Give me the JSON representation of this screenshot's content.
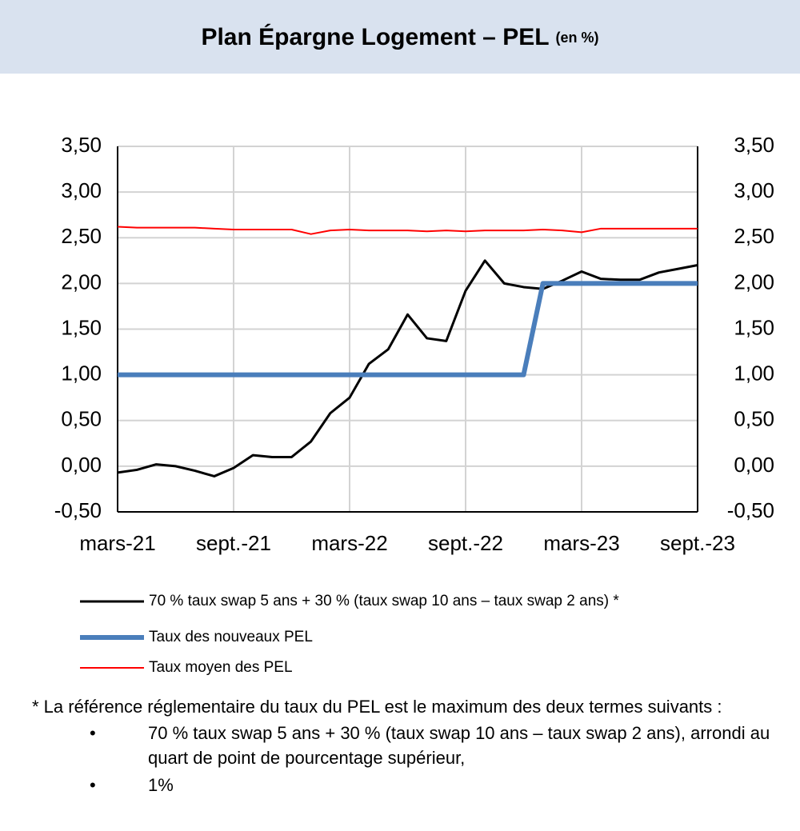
{
  "chart_data": {
    "type": "line",
    "title": "Plan Épargne Logement – PEL",
    "subtitle": "(en %)",
    "categories": [
      "mars-21",
      null,
      null,
      null,
      null,
      null,
      "sept.-21",
      null,
      null,
      null,
      null,
      null,
      "mars-22",
      null,
      null,
      null,
      null,
      null,
      "sept.-22",
      null,
      null,
      null,
      null,
      null,
      "mars-23",
      null,
      null,
      null,
      null,
      null,
      "sept.-23"
    ],
    "series": [
      {
        "name": "70 % taux swap 5 ans + 30 % (taux swap 10 ans – taux swap 2 ans) *",
        "color": "#000000",
        "width": 3,
        "values": [
          -0.07,
          -0.04,
          0.02,
          0.0,
          -0.05,
          -0.11,
          -0.02,
          0.12,
          0.1,
          0.1,
          0.27,
          0.58,
          0.75,
          1.12,
          1.28,
          1.66,
          1.4,
          1.37,
          1.92,
          2.25,
          2.0,
          1.96,
          1.94,
          2.03,
          2.13,
          2.05,
          2.04,
          2.04,
          2.12,
          2.16,
          2.2
        ]
      },
      {
        "name": "Taux des nouveaux PEL",
        "color": "#4a7ebb",
        "width": 6,
        "values": [
          1,
          1,
          1,
          1,
          1,
          1,
          1,
          1,
          1,
          1,
          1,
          1,
          1,
          1,
          1,
          1,
          1,
          1,
          1,
          1,
          1,
          1,
          2,
          2,
          2,
          2,
          2,
          2,
          2,
          2,
          2
        ]
      },
      {
        "name": "Taux moyen des PEL",
        "color": "#ff0000",
        "width": 2,
        "values": [
          2.62,
          2.61,
          2.61,
          2.61,
          2.61,
          2.6,
          2.59,
          2.59,
          2.59,
          2.59,
          2.54,
          2.58,
          2.59,
          2.58,
          2.58,
          2.58,
          2.57,
          2.58,
          2.57,
          2.58,
          2.58,
          2.58,
          2.59,
          2.58,
          2.56,
          2.6,
          2.6,
          2.6,
          2.6,
          2.6,
          2.6
        ]
      }
    ],
    "ylim": [
      -0.5,
      3.5
    ],
    "yticks": [
      {
        "value": -0.5,
        "label": "-0,50"
      },
      {
        "value": 0,
        "label": "0,00"
      },
      {
        "value": 0.5,
        "label": "0,50"
      },
      {
        "value": 1,
        "label": "1,00"
      },
      {
        "value": 1.5,
        "label": "1,50"
      },
      {
        "value": 2,
        "label": "2,00"
      },
      {
        "value": 2.5,
        "label": "2,50"
      },
      {
        "value": 3,
        "label": "3,00"
      },
      {
        "value": 3.5,
        "label": "3,50"
      }
    ],
    "y2lim": [
      -0.5,
      3.5
    ],
    "y2ticks": [
      {
        "value": -0.5,
        "label": "-0,50"
      },
      {
        "value": 0,
        "label": "0,00"
      },
      {
        "value": 0.5,
        "label": "0,50"
      },
      {
        "value": 1,
        "label": "1,00"
      },
      {
        "value": 1.5,
        "label": "1,50"
      },
      {
        "value": 2,
        "label": "2,00"
      },
      {
        "value": 2.5,
        "label": "2,50"
      },
      {
        "value": 3,
        "label": "3,00"
      },
      {
        "value": 3.5,
        "label": "3,50"
      }
    ],
    "grid": true,
    "legend": "bottom"
  },
  "footnote": {
    "text": "* La référence réglementaire du taux du PEL est le maximum des deux termes suivants :",
    "bullets": [
      "70 % taux swap 5 ans + 30 % (taux swap 10 ans – taux swap 2 ans), arrondi au quart de point de pourcentage supérieur,",
      "1%"
    ]
  }
}
